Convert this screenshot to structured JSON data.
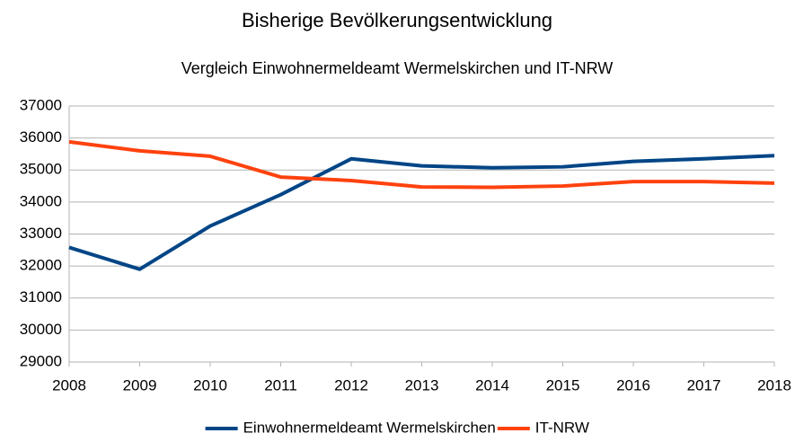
{
  "chart_data": {
    "type": "line",
    "title": "Bisherige Bevölkerungsentwicklung",
    "subtitle": "Vergleich Einwohnermeldeamt Wermelskirchen und IT-NRW",
    "categories": [
      "2008",
      "2009",
      "2010",
      "2011",
      "2012",
      "2013",
      "2014",
      "2015",
      "2016",
      "2017",
      "2018"
    ],
    "series": [
      {
        "name": "Einwohnermeldeamt Wermelskirchen",
        "color": "#004586",
        "values": [
          32580,
          31900,
          33250,
          34230,
          35350,
          35130,
          35070,
          35100,
          35270,
          35350,
          35450
        ]
      },
      {
        "name": "IT-NRW",
        "color": "#ff420e",
        "values": [
          35880,
          35600,
          35430,
          34780,
          34670,
          34470,
          34460,
          34500,
          34640,
          34640,
          34590
        ]
      }
    ],
    "ylim": [
      29000,
      37000
    ],
    "yticks": [
      29000,
      30000,
      31000,
      32000,
      33000,
      34000,
      35000,
      36000,
      37000
    ],
    "grid": true,
    "legend": "bottom"
  }
}
